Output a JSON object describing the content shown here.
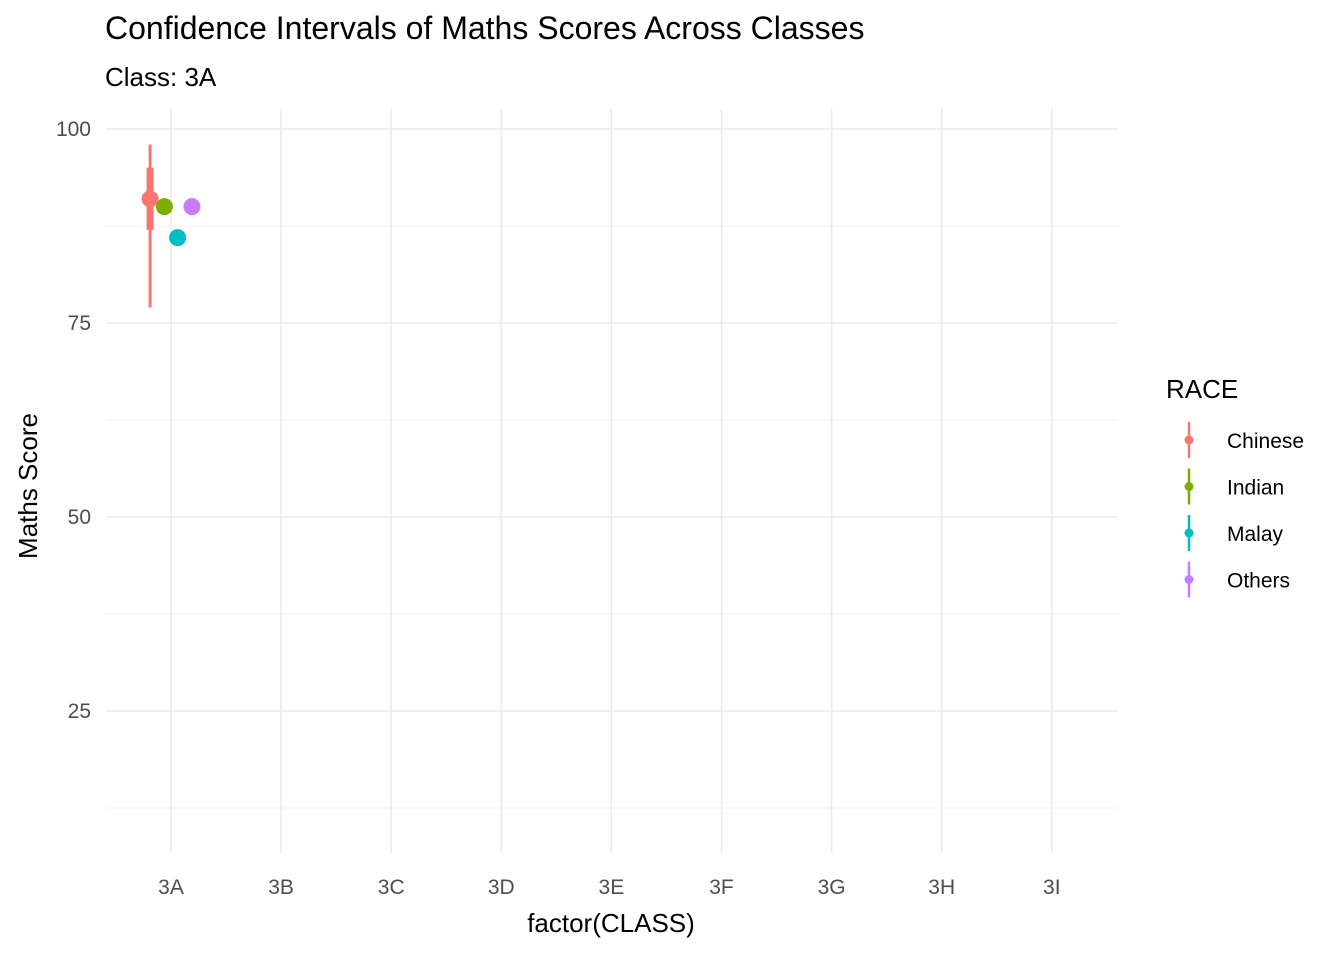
{
  "chart_data": {
    "type": "errorbar",
    "title": "Confidence Intervals of Maths Scores Across Classes",
    "subtitle": "Class: 3A",
    "xlabel": "factor(CLASS)",
    "ylabel": "Maths Score",
    "categories": [
      "3A",
      "3B",
      "3C",
      "3D",
      "3E",
      "3F",
      "3G",
      "3H",
      "3I"
    ],
    "yticks": [
      25,
      50,
      75,
      100
    ],
    "ylim": [
      6,
      104
    ],
    "grid": true,
    "legend": {
      "title": "RACE",
      "position": "right"
    },
    "series": [
      {
        "name": "Chinese",
        "color": "#F8766D",
        "category": "3A",
        "offset": -0.19,
        "mean": 91,
        "inner": [
          87,
          95
        ],
        "outer": [
          77,
          98
        ]
      },
      {
        "name": "Indian",
        "color": "#7CAE00",
        "category": "3A",
        "offset": -0.06,
        "mean": 90,
        "inner": [
          90,
          90
        ],
        "outer": [
          90,
          90
        ]
      },
      {
        "name": "Malay",
        "color": "#00BFC4",
        "category": "3A",
        "offset": 0.06,
        "mean": 86,
        "inner": [
          86,
          86
        ],
        "outer": [
          86,
          86
        ]
      },
      {
        "name": "Others",
        "color": "#C77CFF",
        "category": "3A",
        "offset": 0.19,
        "mean": 90,
        "inner": [
          90,
          90
        ],
        "outer": [
          90,
          90
        ]
      }
    ]
  }
}
